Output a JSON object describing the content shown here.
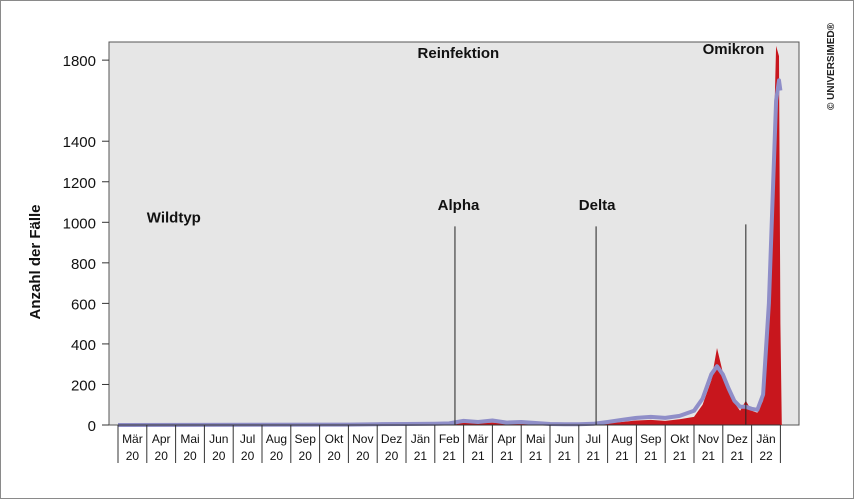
{
  "copyright": "© UNIVERSIMED®",
  "chart_data": {
    "type": "area",
    "ylabel": "Anzahl der Fälle",
    "ylim": [
      0,
      1850
    ],
    "yticks": [
      {
        "label": "0",
        "value": 0
      },
      {
        "label": "200",
        "value": 200
      },
      {
        "label": "400",
        "value": 400
      },
      {
        "label": "600",
        "value": 600
      },
      {
        "label": "800",
        "value": 800
      },
      {
        "label": "1000",
        "value": 1000
      },
      {
        "label": "1200",
        "value": 1200
      },
      {
        "label": "1400",
        "value": 1400
      },
      {
        "label": "1800",
        "value": 1800
      }
    ],
    "months": [
      {
        "m": "Mär",
        "y": "20"
      },
      {
        "m": "Apr",
        "y": "20"
      },
      {
        "m": "Mai",
        "y": "20"
      },
      {
        "m": "Jun",
        "y": "20"
      },
      {
        "m": "Jul",
        "y": "20"
      },
      {
        "m": "Aug",
        "y": "20"
      },
      {
        "m": "Sep",
        "y": "20"
      },
      {
        "m": "Okt",
        "y": "20"
      },
      {
        "m": "Nov",
        "y": "20"
      },
      {
        "m": "Dez",
        "y": "20"
      },
      {
        "m": "Jän",
        "y": "21"
      },
      {
        "m": "Feb",
        "y": "21"
      },
      {
        "m": "Mär",
        "y": "21"
      },
      {
        "m": "Apr",
        "y": "21"
      },
      {
        "m": "Mai",
        "y": "21"
      },
      {
        "m": "Jun",
        "y": "21"
      },
      {
        "m": "Jul",
        "y": "21"
      },
      {
        "m": "Aug",
        "y": "21"
      },
      {
        "m": "Sep",
        "y": "21"
      },
      {
        "m": "Okt",
        "y": "21"
      },
      {
        "m": "Nov",
        "y": "21"
      },
      {
        "m": "Dez",
        "y": "21"
      },
      {
        "m": "Jän",
        "y": "22"
      }
    ],
    "series": [
      {
        "color": "#c8161d",
        "values": [
          [
            0,
            0
          ],
          [
            8,
            2
          ],
          [
            9,
            4
          ],
          [
            10,
            5
          ],
          [
            11,
            6
          ],
          [
            11.5,
            8
          ],
          [
            12,
            12
          ],
          [
            12.5,
            10
          ],
          [
            13,
            12
          ],
          [
            13.5,
            8
          ],
          [
            14,
            10
          ],
          [
            14.5,
            8
          ],
          [
            15,
            5
          ],
          [
            15.5,
            3
          ],
          [
            16,
            3
          ],
          [
            16.5,
            4
          ],
          [
            17,
            10
          ],
          [
            17.5,
            15
          ],
          [
            18,
            22
          ],
          [
            18.5,
            25
          ],
          [
            19,
            20
          ],
          [
            19.5,
            28
          ],
          [
            20,
            40
          ],
          [
            20.3,
            100
          ],
          [
            20.6,
            220
          ],
          [
            20.8,
            380
          ],
          [
            21,
            260
          ],
          [
            21.2,
            170
          ],
          [
            21.4,
            110
          ],
          [
            21.6,
            70
          ],
          [
            21.8,
            120
          ],
          [
            22,
            70
          ],
          [
            22.2,
            60
          ],
          [
            22.4,
            120
          ],
          [
            22.6,
            500
          ],
          [
            22.75,
            1300
          ],
          [
            22.85,
            1870
          ],
          [
            22.95,
            1820
          ],
          [
            23.0,
            500
          ],
          [
            23.05,
            0
          ]
        ]
      },
      {
        "color": "#8f8ec8",
        "values": [
          [
            0,
            0
          ],
          [
            8,
            2
          ],
          [
            9,
            4
          ],
          [
            10,
            5
          ],
          [
            11,
            6
          ],
          [
            11.5,
            8
          ],
          [
            12,
            20
          ],
          [
            12.5,
            15
          ],
          [
            13,
            22
          ],
          [
            13.5,
            12
          ],
          [
            14,
            15
          ],
          [
            14.5,
            10
          ],
          [
            15,
            5
          ],
          [
            15.5,
            4
          ],
          [
            16,
            4
          ],
          [
            16.5,
            6
          ],
          [
            17,
            15
          ],
          [
            17.5,
            25
          ],
          [
            18,
            35
          ],
          [
            18.5,
            40
          ],
          [
            19,
            35
          ],
          [
            19.5,
            45
          ],
          [
            20,
            70
          ],
          [
            20.3,
            130
          ],
          [
            20.6,
            250
          ],
          [
            20.8,
            290
          ],
          [
            21,
            250
          ],
          [
            21.2,
            180
          ],
          [
            21.4,
            120
          ],
          [
            21.6,
            90
          ],
          [
            21.8,
            90
          ],
          [
            22,
            80
          ],
          [
            22.2,
            75
          ],
          [
            22.4,
            150
          ],
          [
            22.6,
            600
          ],
          [
            22.75,
            1200
          ],
          [
            22.85,
            1600
          ],
          [
            22.95,
            1700
          ],
          [
            23.0,
            1650
          ]
        ]
      }
    ],
    "annotations": [
      {
        "text": "Wildtyp",
        "x": 1.0,
        "y": 1000
      },
      {
        "text": "Reinfektion",
        "x": 10.4,
        "y": 1810
      },
      {
        "text": "Alpha",
        "x": 11.1,
        "y": 1060
      },
      {
        "text": "Delta",
        "x": 16.0,
        "y": 1060
      },
      {
        "text": "Omikron",
        "x": 20.3,
        "y": 1830
      }
    ],
    "markers": [
      {
        "x": 11.7,
        "top": 980
      },
      {
        "x": 16.6,
        "top": 980
      },
      {
        "x": 21.8,
        "top": 990
      }
    ]
  }
}
